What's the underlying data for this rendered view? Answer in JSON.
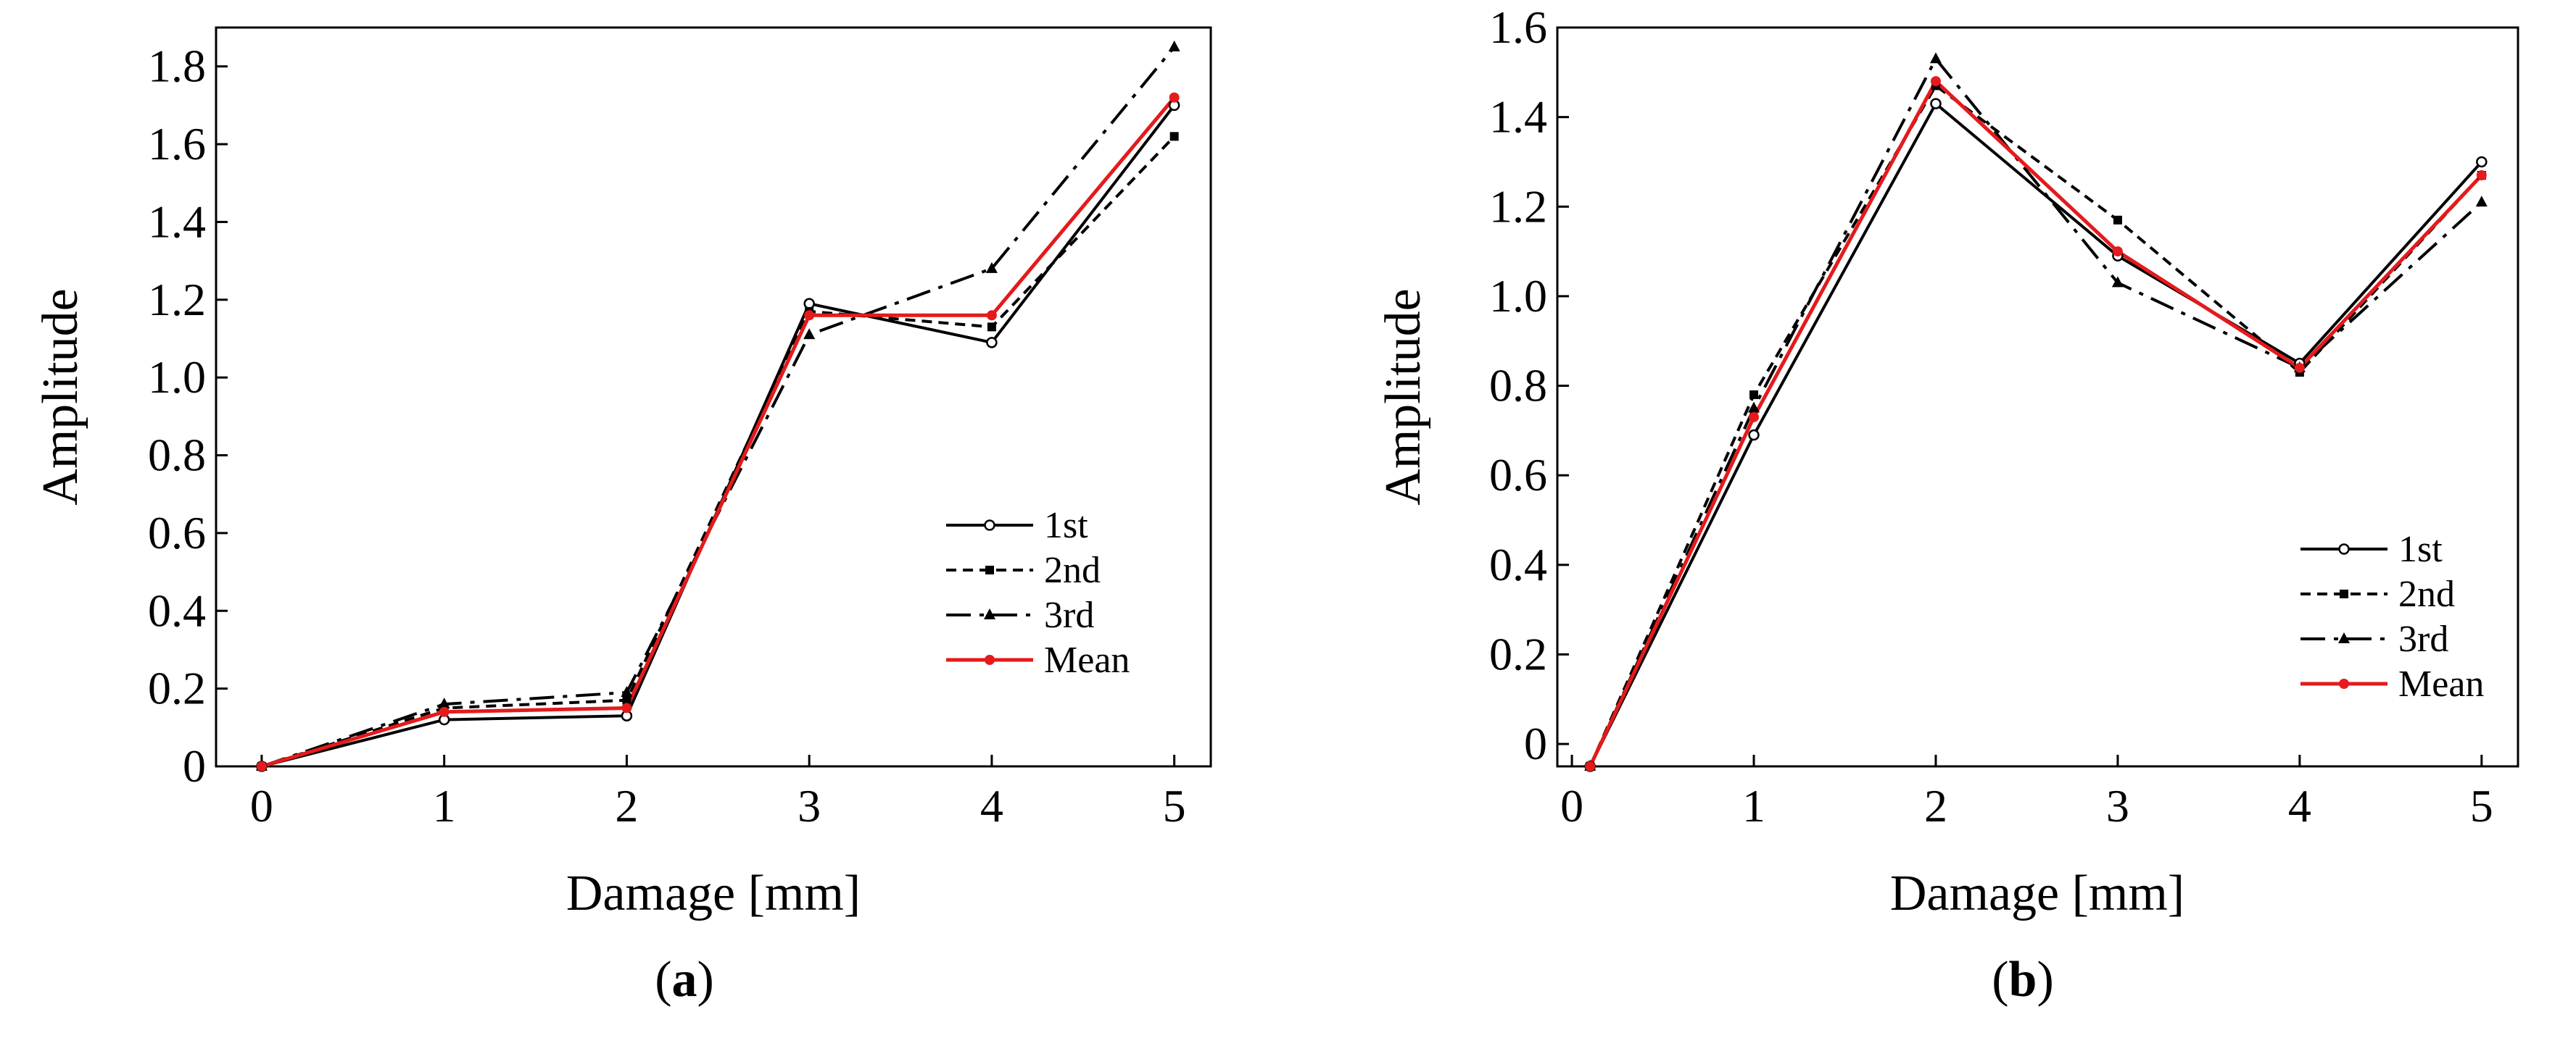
{
  "chart_data": [
    {
      "type": "line",
      "panel_label": {
        "open": "(",
        "letter": "a",
        "close": ")"
      },
      "xlabel": "Damage [mm]",
      "ylabel": "Amplitude",
      "x": [
        0,
        1,
        2,
        3,
        4,
        5
      ],
      "xlim": [
        -0.25,
        5.2
      ],
      "ylim": [
        0,
        1.9
      ],
      "xticks": [
        0,
        1,
        2,
        3,
        4,
        5
      ],
      "xtick_labels": [
        "0",
        "1",
        "2",
        "3",
        "4",
        "5"
      ],
      "yticks": [
        0,
        0.2,
        0.4,
        0.6,
        0.8,
        1.0,
        1.2,
        1.4,
        1.6,
        1.8
      ],
      "ytick_labels": [
        "0",
        "0.2",
        "0.4",
        "0.6",
        "0.8",
        "1.0",
        "1.2",
        "1.4",
        "1.6",
        "1.8"
      ],
      "grid": false,
      "legend_position": "lower-right",
      "series": [
        {
          "name": "1st",
          "values": [
            0,
            0.12,
            0.13,
            1.19,
            1.09,
            1.7
          ],
          "color": "#000000",
          "dash": "solid",
          "marker": "open-circle"
        },
        {
          "name": "2nd",
          "values": [
            0,
            0.15,
            0.17,
            1.17,
            1.13,
            1.62
          ],
          "color": "#000000",
          "dash": "dashed",
          "marker": "square"
        },
        {
          "name": "3rd",
          "values": [
            0,
            0.16,
            0.19,
            1.11,
            1.28,
            1.85
          ],
          "color": "#000000",
          "dash": "dashdot",
          "marker": "triangle"
        },
        {
          "name": "Mean",
          "values": [
            0,
            0.14,
            0.15,
            1.16,
            1.16,
            1.72
          ],
          "color": "#e41a1c",
          "dash": "solid",
          "marker": "dot"
        }
      ]
    },
    {
      "type": "line",
      "panel_label": {
        "open": "(",
        "letter": "b",
        "close": ")"
      },
      "xlabel": "Damage [mm]",
      "ylabel": "Amplitude",
      "x": [
        0.1,
        1,
        2,
        3,
        4,
        5
      ],
      "xlim": [
        -0.08,
        5.2
      ],
      "ylim": [
        -0.05,
        1.6
      ],
      "xticks": [
        0,
        1,
        2,
        3,
        4,
        5
      ],
      "xtick_labels": [
        "0",
        "1",
        "2",
        "3",
        "4",
        "5"
      ],
      "yticks": [
        0,
        0.2,
        0.4,
        0.6,
        0.8,
        1.0,
        1.2,
        1.4,
        1.6
      ],
      "ytick_labels": [
        "0",
        "0.2",
        "0.4",
        "0.6",
        "0.8",
        "1.0",
        "1.2",
        "1.4",
        "1.6"
      ],
      "grid": false,
      "legend_position": "lower-right",
      "series": [
        {
          "name": "1st",
          "values": [
            -0.05,
            0.69,
            1.43,
            1.09,
            0.85,
            1.3
          ],
          "color": "#000000",
          "dash": "solid",
          "marker": "open-circle"
        },
        {
          "name": "2nd",
          "values": [
            -0.05,
            0.78,
            1.47,
            1.17,
            0.83,
            1.27
          ],
          "color": "#000000",
          "dash": "dashed",
          "marker": "square"
        },
        {
          "name": "3rd",
          "values": [
            -0.05,
            0.75,
            1.53,
            1.03,
            0.84,
            1.21
          ],
          "color": "#000000",
          "dash": "dashdot",
          "marker": "triangle"
        },
        {
          "name": "Mean",
          "values": [
            -0.05,
            0.73,
            1.48,
            1.1,
            0.84,
            1.27
          ],
          "color": "#e41a1c",
          "dash": "solid",
          "marker": "dot"
        }
      ]
    }
  ]
}
